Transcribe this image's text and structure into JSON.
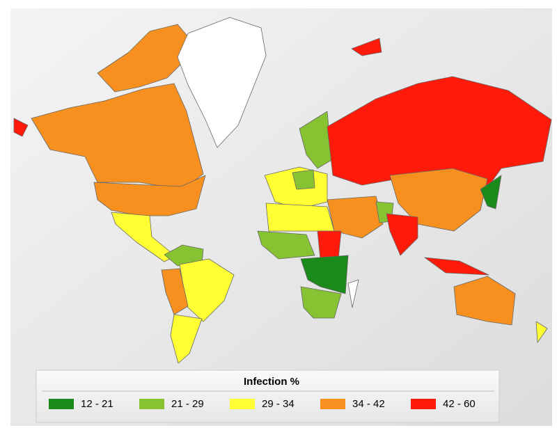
{
  "legend": {
    "title": "Infection %",
    "items": [
      {
        "label": "12 - 21",
        "color": "#1a8a1a"
      },
      {
        "label": "21 - 29",
        "color": "#86c232"
      },
      {
        "label": "29 - 34",
        "color": "#ffff33"
      },
      {
        "label": "34 - 42",
        "color": "#f7901e"
      },
      {
        "label": "42 - 60",
        "color": "#ff1a0a"
      }
    ]
  }
}
